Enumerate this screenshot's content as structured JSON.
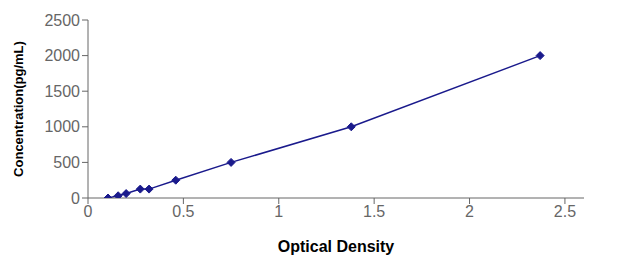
{
  "chart_data": {
    "type": "line",
    "x": [
      0.105,
      0.158,
      0.2,
      0.274,
      0.32,
      0.46,
      0.75,
      1.38,
      2.37
    ],
    "values": [
      0,
      31.25,
      62.5,
      125,
      125,
      250,
      500,
      1000,
      2000
    ],
    "color": "#1a1a8c",
    "marker": "diamond",
    "line_style": "solid",
    "xlabel": "Optical Density",
    "ylabel": "Concentration(pg/mL)",
    "xlim": [
      0,
      2.6
    ],
    "ylim": [
      0,
      2500
    ],
    "xticks": [
      0,
      0.5,
      1,
      1.5,
      2,
      2.5
    ],
    "yticks": [
      0,
      500,
      1000,
      1500,
      2000,
      2500
    ],
    "grid": false
  }
}
